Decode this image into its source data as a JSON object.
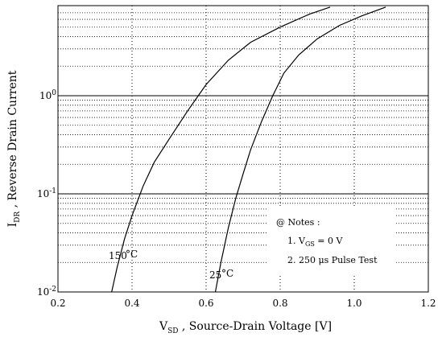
{
  "chart_data": {
    "type": "line",
    "title": "",
    "xlabel": {
      "main": "V",
      "sub": "SD",
      "rest": " , Source-Drain Voltage  [V]"
    },
    "ylabel": {
      "main": "I",
      "sub": "DR",
      "rest": " , Reverse Drain Current"
    },
    "xlim": [
      0.2,
      1.2
    ],
    "ylim": [
      0.01,
      8
    ],
    "yscale": "log",
    "grid": true,
    "x_ticks": [
      {
        "value": 0.2,
        "label": "0.2"
      },
      {
        "value": 0.4,
        "label": "0.4"
      },
      {
        "value": 0.6,
        "label": "0.6"
      },
      {
        "value": 0.8,
        "label": "0.8"
      },
      {
        "value": 1.0,
        "label": "1.0"
      },
      {
        "value": 1.2,
        "label": "1.2"
      }
    ],
    "y_ticks": [
      {
        "value": 0.01,
        "base": "10",
        "exp": "-2"
      },
      {
        "value": 0.1,
        "base": "10",
        "exp": "-1"
      },
      {
        "value": 1,
        "base": "10",
        "exp": "0"
      }
    ],
    "series": [
      {
        "name": "150 °C",
        "x": [
          0.345,
          0.36,
          0.38,
          0.4,
          0.43,
          0.46,
          0.5,
          0.55,
          0.6,
          0.66,
          0.72,
          0.8,
          0.88,
          0.935
        ],
        "y": [
          0.01,
          0.018,
          0.035,
          0.06,
          0.12,
          0.21,
          0.36,
          0.7,
          1.3,
          2.3,
          3.5,
          5.0,
          6.8,
          8.0
        ]
      },
      {
        "name": "25 °C",
        "x": [
          0.625,
          0.64,
          0.66,
          0.68,
          0.7,
          0.72,
          0.75,
          0.78,
          0.81,
          0.85,
          0.9,
          0.96,
          1.02,
          1.085
        ],
        "y": [
          0.01,
          0.02,
          0.045,
          0.09,
          0.16,
          0.28,
          0.55,
          1.0,
          1.7,
          2.6,
          3.8,
          5.2,
          6.5,
          8.0
        ]
      }
    ],
    "curve_labels": [
      {
        "series": 0,
        "text": "150",
        "unit": "°C"
      },
      {
        "series": 1,
        "text": "25",
        "unit": "°C"
      }
    ],
    "annotations": {
      "title": "@ Notes :",
      "note1": {
        "prefix": "1. V",
        "sub": "GS",
        "rest": " = 0 V"
      },
      "note2": "2. 250 μs Pulse Test"
    }
  }
}
